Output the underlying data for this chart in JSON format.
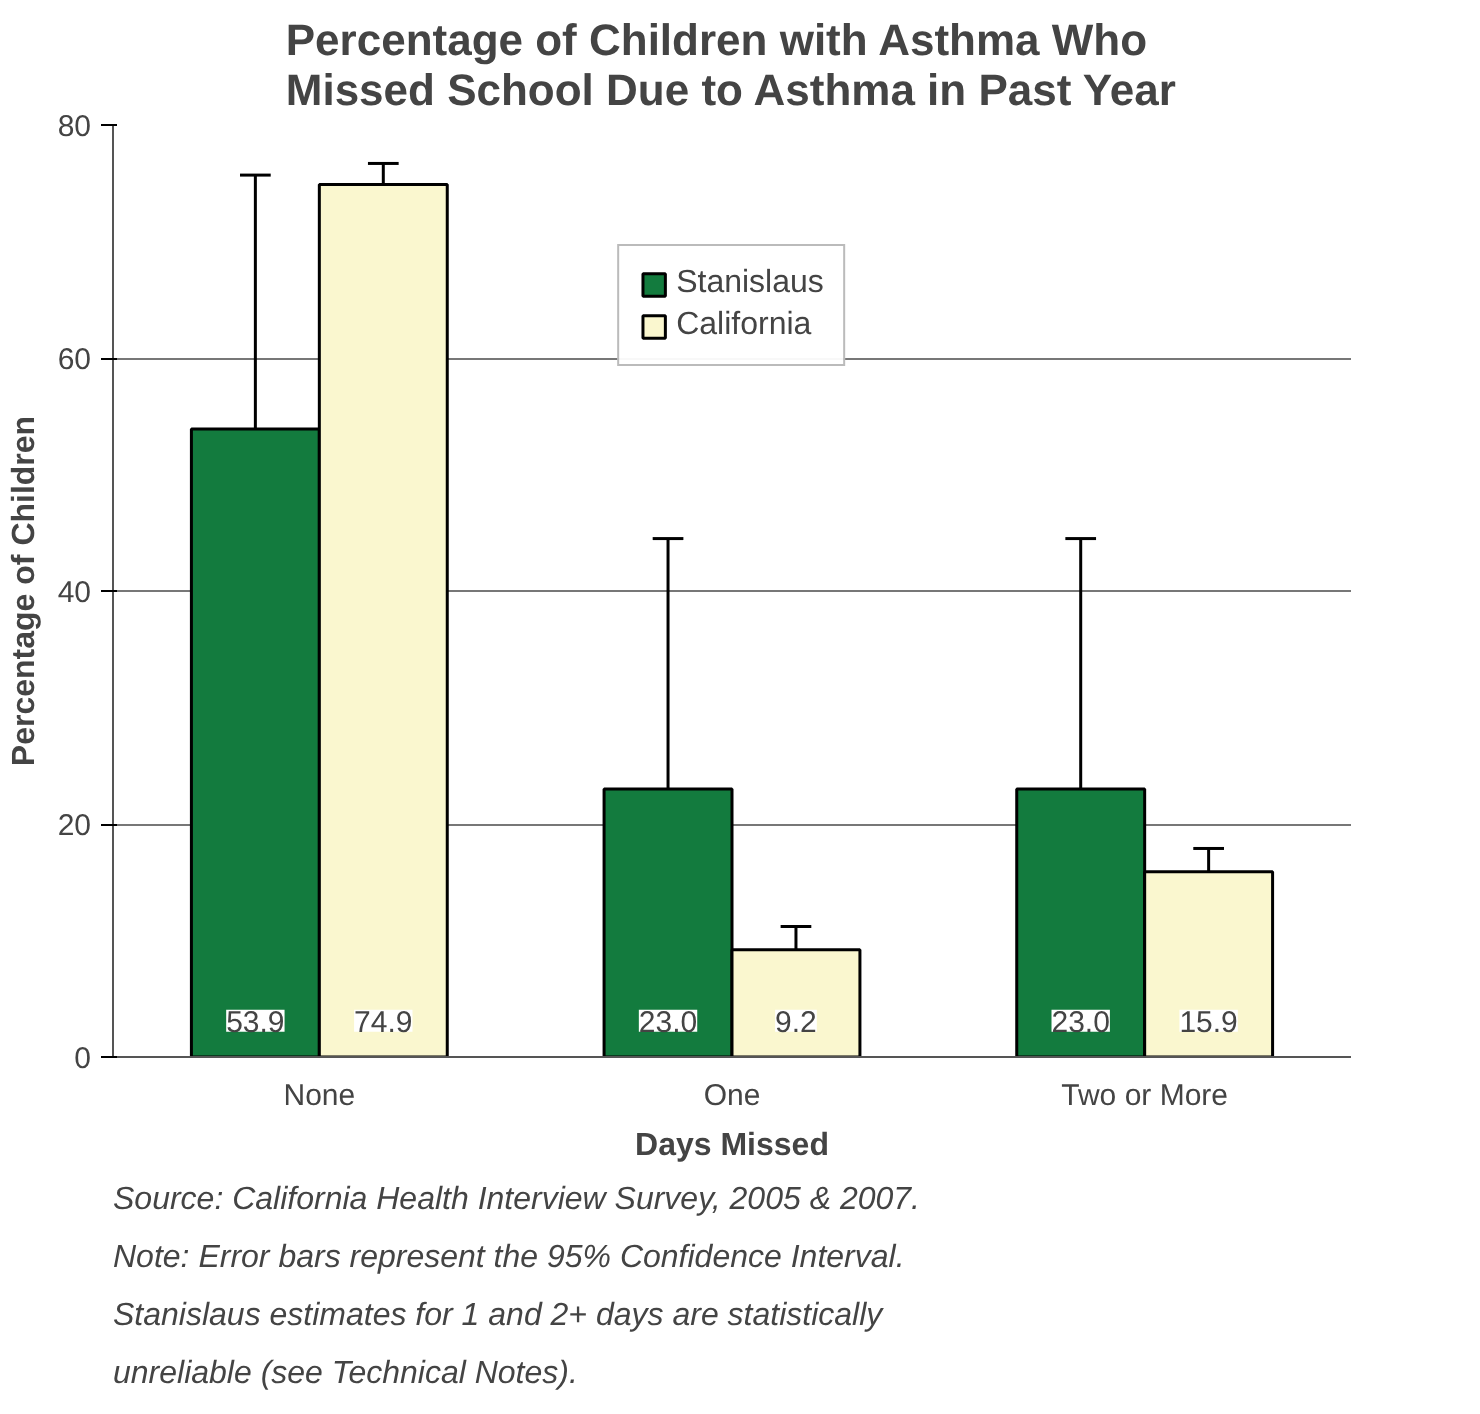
{
  "chart_data": {
    "type": "bar",
    "title": "Percentage of Children with Asthma Who Missed School Due to Asthma in Past Year",
    "xlabel": "Days Missed",
    "ylabel": "Percentage of Children",
    "categories": [
      "None",
      "One",
      "Two or More"
    ],
    "series": [
      {
        "name": "Stanislaus",
        "color": "#137b3e",
        "values": [
          53.9,
          23.0,
          23.0
        ],
        "value_labels": [
          "53.9",
          "23.0",
          "23.0"
        ],
        "errors": [
          [
            53.9,
            75.7
          ],
          [
            23.0,
            44.5
          ],
          [
            23.0,
            44.5
          ]
        ]
      },
      {
        "name": "California",
        "color": "#faf7cf",
        "values": [
          74.9,
          9.2,
          15.9
        ],
        "value_labels": [
          "74.9",
          "9.2",
          "15.9"
        ],
        "errors": [
          [
            74.9,
            76.7
          ],
          [
            9.2,
            11.2
          ],
          [
            15.9,
            17.9
          ]
        ]
      }
    ],
    "ylim": [
      0,
      80
    ],
    "yticks": [
      0,
      20,
      40,
      60,
      80
    ],
    "grid": "y",
    "legend": "top",
    "annotations": [
      "Source: California Health Interview Survey, 2005 & 2007.  Note: Error bars represent the 95% Confidence Interval.  Stanislaus estimates for 1 and 2+ days are statistically unreliable (see Technical Notes)."
    ]
  }
}
